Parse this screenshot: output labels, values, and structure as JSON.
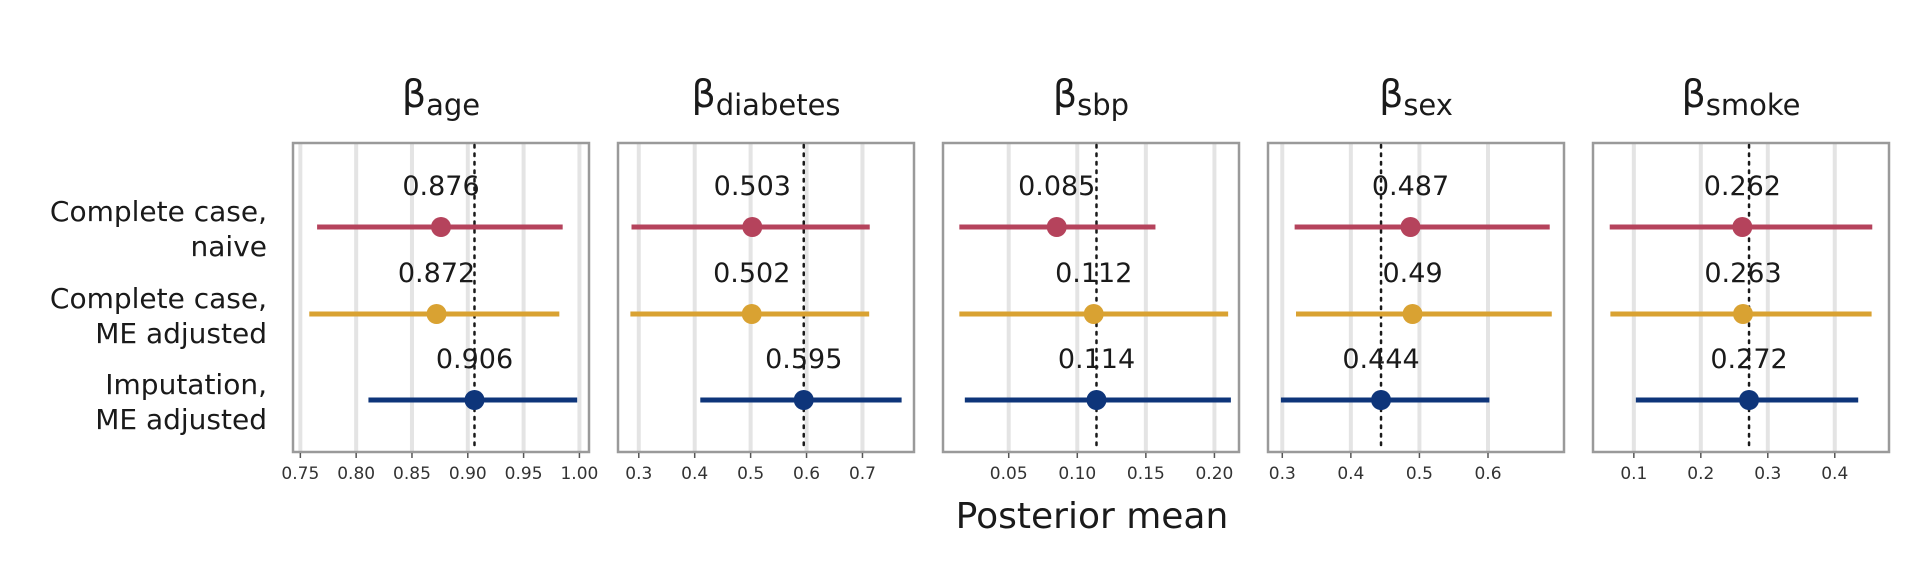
{
  "chart_data": {
    "type": "forest",
    "xlabel": "Posterior mean",
    "methods": [
      {
        "label_line1": "Complete case,",
        "label_line2": "naive",
        "color": "#b5435c"
      },
      {
        "label_line1": "Complete case,",
        "label_line2": "ME adjusted",
        "color": "#d9a232"
      },
      {
        "label_line1": "Imputation,",
        "label_line2": "ME adjusted",
        "color": "#0e357a"
      }
    ],
    "panels": [
      {
        "title_main": "β",
        "title_sub": "age",
        "xlim": [
          0.747,
          1.005
        ],
        "ticks": [
          0.75,
          0.8,
          0.85,
          0.9,
          0.95,
          1.0
        ],
        "tick_labels": [
          "0.75",
          "0.80",
          "0.85",
          "0.90",
          "0.95",
          "1.00"
        ],
        "reference": 0.906,
        "estimates": [
          {
            "mean": 0.876,
            "label": "0.876",
            "lo": 0.765,
            "hi": 0.985
          },
          {
            "mean": 0.872,
            "label": "0.872",
            "lo": 0.758,
            "hi": 0.982
          },
          {
            "mean": 0.906,
            "label": "0.906",
            "lo": 0.811,
            "hi": 0.998
          }
        ]
      },
      {
        "title_main": "β",
        "title_sub": "diabetes",
        "xlim": [
          0.27,
          0.785
        ],
        "ticks": [
          0.3,
          0.4,
          0.5,
          0.6,
          0.7
        ],
        "tick_labels": [
          "0.3",
          "0.4",
          "0.5",
          "0.6",
          "0.7"
        ],
        "reference": 0.595,
        "estimates": [
          {
            "mean": 0.503,
            "label": "0.503",
            "lo": 0.287,
            "hi": 0.713
          },
          {
            "mean": 0.502,
            "label": "0.502",
            "lo": 0.285,
            "hi": 0.712
          },
          {
            "mean": 0.595,
            "label": "0.595",
            "lo": 0.41,
            "hi": 0.77
          }
        ]
      },
      {
        "title_main": "β",
        "title_sub": "sbp",
        "xlim": [
          0.005,
          0.215
        ],
        "ticks": [
          0.05,
          0.1,
          0.15,
          0.2
        ],
        "tick_labels": [
          "0.05",
          "0.10",
          "0.15",
          "0.20"
        ],
        "reference": 0.114,
        "estimates": [
          {
            "mean": 0.085,
            "label": "0.085",
            "lo": 0.014,
            "hi": 0.157
          },
          {
            "mean": 0.112,
            "label": "0.112",
            "lo": 0.014,
            "hi": 0.21
          },
          {
            "mean": 0.114,
            "label": "0.114",
            "lo": 0.018,
            "hi": 0.212
          }
        ]
      },
      {
        "title_main": "β",
        "title_sub": "sex",
        "xlim": [
          0.285,
          0.705
        ],
        "ticks": [
          0.3,
          0.4,
          0.5,
          0.6
        ],
        "tick_labels": [
          "0.3",
          "0.4",
          "0.5",
          "0.6"
        ],
        "reference": 0.444,
        "estimates": [
          {
            "mean": 0.487,
            "label": "0.487",
            "lo": 0.318,
            "hi": 0.69
          },
          {
            "mean": 0.49,
            "label": "0.49",
            "lo": 0.32,
            "hi": 0.693
          },
          {
            "mean": 0.444,
            "label": "0.444",
            "lo": 0.298,
            "hi": 0.602
          }
        ]
      },
      {
        "title_main": "β",
        "title_sub": "smoke",
        "xlim": [
          0.045,
          0.475
        ],
        "ticks": [
          0.1,
          0.2,
          0.3,
          0.4
        ],
        "tick_labels": [
          "0.1",
          "0.2",
          "0.3",
          "0.4"
        ],
        "reference": 0.272,
        "estimates": [
          {
            "mean": 0.262,
            "label": "0.262",
            "lo": 0.064,
            "hi": 0.456
          },
          {
            "mean": 0.263,
            "label": "0.263",
            "lo": 0.065,
            "hi": 0.455
          },
          {
            "mean": 0.272,
            "label": "0.272",
            "lo": 0.103,
            "hi": 0.435
          }
        ]
      }
    ]
  }
}
